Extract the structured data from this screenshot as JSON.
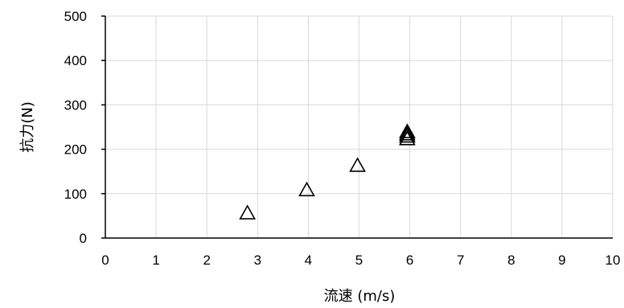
{
  "chart_data": {
    "type": "scatter",
    "title": "",
    "xlabel": "流速 (m/s)",
    "ylabel": "抗力(N)",
    "xlim": [
      0,
      10
    ],
    "ylim": [
      0,
      500
    ],
    "xticks": [
      0,
      1,
      2,
      3,
      4,
      5,
      6,
      7,
      8,
      9,
      10
    ],
    "yticks": [
      0,
      100,
      200,
      300,
      400,
      500
    ],
    "grid": true,
    "legend": "none",
    "marker": "open-triangle",
    "colors": {
      "marker": "#000000",
      "grid": "#d9d9d9",
      "axis": "#000000"
    },
    "series": [
      {
        "points": [
          {
            "x": 2.8,
            "y": 55
          },
          {
            "x": 3.97,
            "y": 107
          },
          {
            "x": 4.97,
            "y": 162
          },
          {
            "x": 5.95,
            "y": 222
          },
          {
            "x": 5.95,
            "y": 228
          },
          {
            "x": 5.95,
            "y": 233
          },
          {
            "x": 5.95,
            "y": 238
          }
        ]
      }
    ]
  }
}
